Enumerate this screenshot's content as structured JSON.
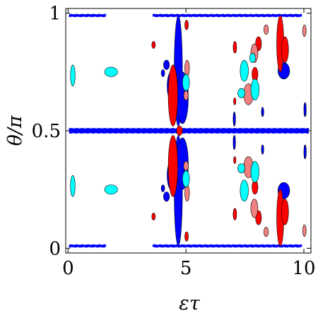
{
  "chart_data": {
    "type": "heatmap",
    "title": "",
    "xlabel": "ετ",
    "ylabel": "θ/π",
    "xlim": [
      -0.1,
      10.3
    ],
    "ylim": [
      -0.02,
      1.02
    ],
    "xticks": [
      0,
      5,
      10
    ],
    "xtick_labels": [
      "0",
      "5",
      "10"
    ],
    "yticks": [
      0,
      0.5,
      1
    ],
    "ytick_labels": [
      "0",
      "0.5",
      "1"
    ],
    "grid": false,
    "legend": "none",
    "colors": {
      "strong_positive": "#ff0000",
      "weak_positive": "#f08080",
      "weak_negative": "#00ffff",
      "strong_negative": "#0000ff",
      "background": "#ffffff"
    },
    "regions": [
      {
        "level": "strong_negative",
        "x": [
          0.05,
          1.6
        ],
        "y": [
          0.985,
          0.995
        ],
        "shape": "band"
      },
      {
        "level": "strong_negative",
        "x": [
          3.6,
          9.9
        ],
        "y": [
          0.985,
          0.995
        ],
        "shape": "band"
      },
      {
        "level": "strong_negative",
        "x": [
          0.05,
          1.6
        ],
        "y": [
          0.005,
          0.015
        ],
        "shape": "band"
      },
      {
        "level": "strong_negative",
        "x": [
          3.6,
          9.9
        ],
        "y": [
          0.005,
          0.015
        ],
        "shape": "band"
      },
      {
        "level": "strong_negative",
        "x": [
          0.05,
          10.2
        ],
        "y": [
          0.49,
          0.51
        ],
        "shape": "band"
      },
      {
        "level": "strong_negative",
        "x": [
          4.5,
          4.85
        ],
        "y": [
          0.52,
          0.99
        ],
        "shape": "blob"
      },
      {
        "level": "strong_negative",
        "x": [
          4.5,
          4.85
        ],
        "y": [
          0.01,
          0.48
        ],
        "shape": "blob"
      },
      {
        "level": "strong_negative",
        "x": [
          4.6,
          5.1
        ],
        "y": [
          0.53,
          0.75
        ],
        "shape": "blob"
      },
      {
        "level": "strong_negative",
        "x": [
          4.6,
          5.1
        ],
        "y": [
          0.25,
          0.47
        ],
        "shape": "blob"
      },
      {
        "level": "strong_negative",
        "x": [
          4.2,
          4.55
        ],
        "y": [
          0.63,
          0.75
        ],
        "shape": "blob"
      },
      {
        "level": "strong_negative",
        "x": [
          4.2,
          4.55
        ],
        "y": [
          0.25,
          0.37
        ],
        "shape": "blob"
      },
      {
        "level": "strong_negative",
        "x": [
          8.9,
          9.4
        ],
        "y": [
          0.72,
          0.79
        ],
        "shape": "blob"
      },
      {
        "level": "strong_negative",
        "x": [
          8.9,
          9.4
        ],
        "y": [
          0.21,
          0.28
        ],
        "shape": "blob"
      },
      {
        "level": "strong_negative",
        "x": [
          4.05,
          4.3
        ],
        "y": [
          0.76,
          0.8
        ],
        "shape": "blob"
      },
      {
        "level": "strong_negative",
        "x": [
          4.05,
          4.3
        ],
        "y": [
          0.2,
          0.24
        ],
        "shape": "blob"
      },
      {
        "level": "strong_negative",
        "x": [
          3.95,
          4.1
        ],
        "y": [
          0.73,
          0.76
        ],
        "shape": "blob"
      },
      {
        "level": "strong_negative",
        "x": [
          3.95,
          4.1
        ],
        "y": [
          0.24,
          0.27
        ],
        "shape": "blob"
      },
      {
        "level": "strong_negative",
        "x": [
          7.0,
          7.1
        ],
        "y": [
          0.42,
          0.48
        ],
        "shape": "blob"
      },
      {
        "level": "strong_negative",
        "x": [
          7.0,
          7.1
        ],
        "y": [
          0.52,
          0.58
        ],
        "shape": "blob"
      },
      {
        "level": "strong_negative",
        "x": [
          10.0,
          10.1
        ],
        "y": [
          0.56,
          0.62
        ],
        "shape": "blob"
      },
      {
        "level": "strong_negative",
        "x": [
          10.0,
          10.1
        ],
        "y": [
          0.38,
          0.44
        ],
        "shape": "blob"
      },
      {
        "level": "strong_negative",
        "x": [
          8.2,
          8.3
        ],
        "y": [
          0.56,
          0.6
        ],
        "shape": "blob"
      },
      {
        "level": "strong_negative",
        "x": [
          8.2,
          8.3
        ],
        "y": [
          0.4,
          0.44
        ],
        "shape": "blob"
      },
      {
        "level": "strong_positive",
        "x": [
          4.25,
          4.65
        ],
        "y": [
          0.52,
          0.78
        ],
        "shape": "blob"
      },
      {
        "level": "strong_positive",
        "x": [
          4.25,
          4.65
        ],
        "y": [
          0.22,
          0.48
        ],
        "shape": "blob"
      },
      {
        "level": "strong_positive",
        "x": [
          8.85,
          9.15
        ],
        "y": [
          0.75,
          0.99
        ],
        "shape": "blob"
      },
      {
        "level": "strong_positive",
        "x": [
          8.85,
          9.15
        ],
        "y": [
          0.01,
          0.25
        ],
        "shape": "blob"
      },
      {
        "level": "strong_positive",
        "x": [
          9.05,
          9.35
        ],
        "y": [
          0.79,
          0.9
        ],
        "shape": "blob"
      },
      {
        "level": "strong_positive",
        "x": [
          9.05,
          9.35
        ],
        "y": [
          0.1,
          0.21
        ],
        "shape": "blob"
      },
      {
        "level": "strong_positive",
        "x": [
          7.95,
          8.2
        ],
        "y": [
          0.84,
          0.9
        ],
        "shape": "blob"
      },
      {
        "level": "strong_positive",
        "x": [
          7.95,
          8.2
        ],
        "y": [
          0.1,
          0.16
        ],
        "shape": "blob"
      },
      {
        "level": "strong_positive",
        "x": [
          7.8,
          8.05
        ],
        "y": [
          0.71,
          0.77
        ],
        "shape": "blob"
      },
      {
        "level": "strong_positive",
        "x": [
          7.8,
          8.05
        ],
        "y": [
          0.23,
          0.29
        ],
        "shape": "blob"
      },
      {
        "level": "strong_positive",
        "x": [
          7.0,
          7.15
        ],
        "y": [
          0.83,
          0.88
        ],
        "shape": "blob"
      },
      {
        "level": "strong_positive",
        "x": [
          7.0,
          7.15
        ],
        "y": [
          0.12,
          0.17
        ],
        "shape": "blob"
      },
      {
        "level": "strong_positive",
        "x": [
          7.02,
          7.12
        ],
        "y": [
          0.61,
          0.64
        ],
        "shape": "blob"
      },
      {
        "level": "strong_positive",
        "x": [
          7.02,
          7.12
        ],
        "y": [
          0.36,
          0.39
        ],
        "shape": "blob"
      },
      {
        "level": "strong_positive",
        "x": [
          4.95,
          5.1
        ],
        "y": [
          0.93,
          0.97
        ],
        "shape": "blob"
      },
      {
        "level": "strong_positive",
        "x": [
          4.95,
          5.1
        ],
        "y": [
          0.03,
          0.07
        ],
        "shape": "blob"
      },
      {
        "level": "strong_positive",
        "x": [
          3.55,
          3.7
        ],
        "y": [
          0.85,
          0.88
        ],
        "shape": "blob"
      },
      {
        "level": "strong_positive",
        "x": [
          3.55,
          3.7
        ],
        "y": [
          0.12,
          0.15
        ],
        "shape": "blob"
      },
      {
        "level": "strong_positive",
        "x": [
          4.6,
          4.85
        ],
        "y": [
          0.48,
          0.52
        ],
        "shape": "blob"
      },
      {
        "level": "weak_positive",
        "x": [
          7.45,
          7.85
        ],
        "y": [
          0.61,
          0.7
        ],
        "shape": "blob"
      },
      {
        "level": "weak_positive",
        "x": [
          7.45,
          7.85
        ],
        "y": [
          0.3,
          0.39
        ],
        "shape": "blob"
      },
      {
        "level": "weak_positive",
        "x": [
          7.75,
          8.05
        ],
        "y": [
          0.79,
          0.87
        ],
        "shape": "blob"
      },
      {
        "level": "weak_positive",
        "x": [
          7.75,
          8.05
        ],
        "y": [
          0.13,
          0.21
        ],
        "shape": "blob"
      },
      {
        "level": "weak_positive",
        "x": [
          4.95,
          5.15
        ],
        "y": [
          0.73,
          0.8
        ],
        "shape": "blob"
      },
      {
        "level": "weak_positive",
        "x": [
          4.95,
          5.15
        ],
        "y": [
          0.2,
          0.27
        ],
        "shape": "blob"
      },
      {
        "level": "weak_positive",
        "x": [
          4.9,
          5.1
        ],
        "y": [
          0.63,
          0.67
        ],
        "shape": "blob"
      },
      {
        "level": "weak_positive",
        "x": [
          4.9,
          5.1
        ],
        "y": [
          0.33,
          0.37
        ],
        "shape": "blob"
      },
      {
        "level": "weak_positive",
        "x": [
          9.95,
          10.1
        ],
        "y": [
          0.9,
          0.95
        ],
        "shape": "blob"
      },
      {
        "level": "weak_positive",
        "x": [
          9.95,
          10.1
        ],
        "y": [
          0.05,
          0.1
        ],
        "shape": "blob"
      },
      {
        "level": "weak_positive",
        "x": [
          8.3,
          8.5
        ],
        "y": [
          0.91,
          0.95
        ],
        "shape": "blob"
      },
      {
        "level": "weak_positive",
        "x": [
          8.3,
          8.5
        ],
        "y": [
          0.05,
          0.09
        ],
        "shape": "blob"
      },
      {
        "level": "weak_negative",
        "x": [
          0.1,
          0.3
        ],
        "y": [
          0.69,
          0.78
        ],
        "shape": "blob"
      },
      {
        "level": "weak_negative",
        "x": [
          0.1,
          0.3
        ],
        "y": [
          0.22,
          0.31
        ],
        "shape": "blob"
      },
      {
        "level": "weak_negative",
        "x": [
          1.55,
          2.1
        ],
        "y": [
          0.73,
          0.77
        ],
        "shape": "blob"
      },
      {
        "level": "weak_negative",
        "x": [
          1.55,
          2.1
        ],
        "y": [
          0.23,
          0.27
        ],
        "shape": "blob"
      },
      {
        "level": "weak_negative",
        "x": [
          4.85,
          5.15
        ],
        "y": [
          0.67,
          0.74
        ],
        "shape": "blob"
      },
      {
        "level": "weak_negative",
        "x": [
          4.85,
          5.15
        ],
        "y": [
          0.26,
          0.33
        ],
        "shape": "blob"
      },
      {
        "level": "weak_negative",
        "x": [
          7.3,
          7.65
        ],
        "y": [
          0.71,
          0.8
        ],
        "shape": "blob"
      },
      {
        "level": "weak_negative",
        "x": [
          7.3,
          7.65
        ],
        "y": [
          0.2,
          0.29
        ],
        "shape": "blob"
      },
      {
        "level": "weak_negative",
        "x": [
          7.2,
          7.5
        ],
        "y": [
          0.64,
          0.68
        ],
        "shape": "blob"
      },
      {
        "level": "weak_negative",
        "x": [
          7.2,
          7.5
        ],
        "y": [
          0.32,
          0.36
        ],
        "shape": "blob"
      },
      {
        "level": "weak_negative",
        "x": [
          7.75,
          8.1
        ],
        "y": [
          0.63,
          0.72
        ],
        "shape": "blob"
      },
      {
        "level": "weak_negative",
        "x": [
          7.75,
          8.1
        ],
        "y": [
          0.28,
          0.37
        ],
        "shape": "blob"
      },
      {
        "level": "weak_negative",
        "x": [
          7.7,
          7.95
        ],
        "y": [
          0.79,
          0.83
        ],
        "shape": "blob"
      }
    ]
  }
}
